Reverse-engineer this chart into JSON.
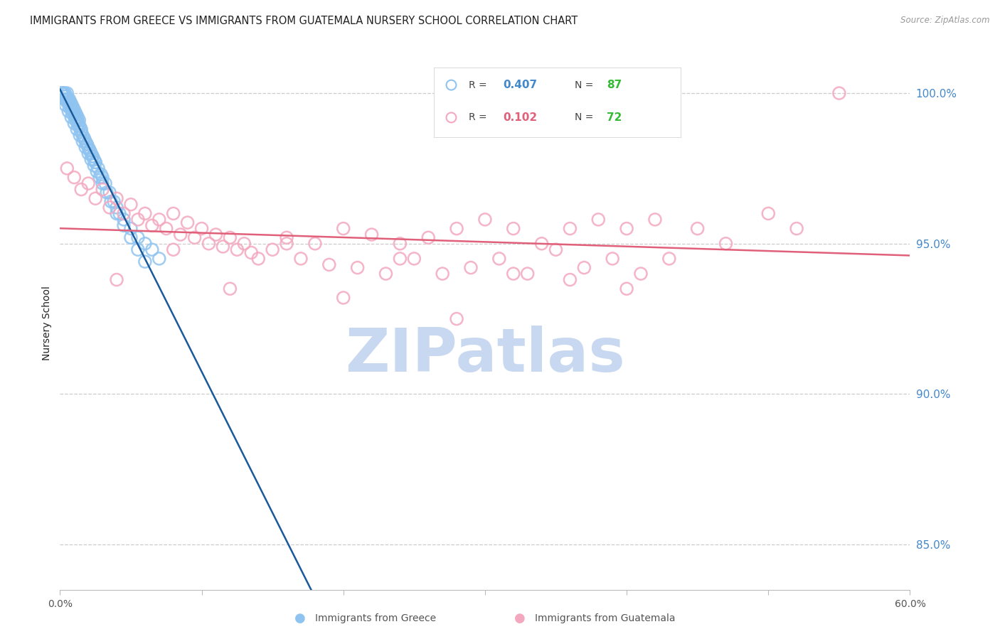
{
  "title": "IMMIGRANTS FROM GREECE VS IMMIGRANTS FROM GUATEMALA NURSERY SCHOOL CORRELATION CHART",
  "source": "Source: ZipAtlas.com",
  "ylabel": "Nursery School",
  "xlim": [
    0.0,
    60.0
  ],
  "ylim": [
    83.5,
    101.2
  ],
  "yticks": [
    85.0,
    90.0,
    95.0,
    100.0
  ],
  "legend_greece_R": "0.407",
  "legend_greece_N": "87",
  "legend_guatemala_R": "0.102",
  "legend_guatemala_N": "72",
  "greece_color": "#90C4F0",
  "guatemala_color": "#F4A8C0",
  "greece_line_color": "#1A5A9A",
  "guatemala_line_color": "#E0607A",
  "watermark": "ZIPatlas",
  "watermark_color": "#C8D8F0",
  "greece_scatter_x": [
    0.1,
    0.15,
    0.2,
    0.25,
    0.3,
    0.35,
    0.4,
    0.45,
    0.5,
    0.55,
    0.6,
    0.65,
    0.7,
    0.75,
    0.8,
    0.85,
    0.9,
    0.95,
    1.0,
    1.05,
    1.1,
    1.15,
    1.2,
    1.25,
    1.3,
    1.35,
    1.4,
    1.5,
    1.6,
    1.7,
    1.8,
    1.9,
    2.0,
    2.1,
    2.2,
    2.3,
    2.4,
    2.5,
    2.7,
    2.9,
    3.0,
    3.2,
    3.5,
    3.8,
    4.0,
    4.2,
    4.5,
    5.0,
    5.5,
    6.0,
    6.5,
    7.0,
    0.3,
    0.5,
    0.7,
    0.9,
    1.1,
    1.3,
    1.5,
    1.7,
    1.9,
    2.1,
    2.3,
    2.5,
    0.4,
    0.6,
    0.8,
    1.0,
    1.2,
    1.4,
    1.6,
    1.8,
    2.0,
    2.2,
    2.4,
    2.6,
    2.8,
    3.0,
    3.3,
    3.6,
    4.0,
    4.5,
    5.0,
    5.5,
    6.0,
    0.2,
    0.8
  ],
  "greece_scatter_y": [
    100.0,
    100.0,
    100.0,
    99.9,
    100.0,
    100.0,
    99.8,
    99.9,
    100.0,
    99.8,
    99.7,
    99.8,
    99.6,
    99.7,
    99.5,
    99.6,
    99.4,
    99.5,
    99.3,
    99.4,
    99.2,
    99.3,
    99.1,
    99.2,
    99.0,
    99.1,
    98.9,
    98.8,
    98.6,
    98.5,
    98.4,
    98.3,
    98.2,
    98.1,
    98.0,
    97.9,
    97.8,
    97.7,
    97.5,
    97.3,
    97.2,
    97.0,
    96.7,
    96.4,
    96.2,
    96.0,
    95.8,
    95.5,
    95.2,
    95.0,
    94.8,
    94.5,
    99.8,
    99.7,
    99.5,
    99.3,
    99.1,
    98.9,
    98.7,
    98.5,
    98.3,
    98.1,
    97.9,
    97.7,
    99.6,
    99.4,
    99.2,
    99.0,
    98.8,
    98.6,
    98.4,
    98.2,
    98.0,
    97.8,
    97.6,
    97.4,
    97.2,
    97.0,
    96.7,
    96.4,
    96.0,
    95.6,
    95.2,
    94.8,
    94.4,
    100.0,
    99.5
  ],
  "guatemala_scatter_x": [
    0.5,
    1.0,
    1.5,
    2.0,
    2.5,
    3.0,
    3.5,
    4.0,
    4.5,
    5.0,
    5.5,
    6.0,
    6.5,
    7.0,
    7.5,
    8.0,
    8.5,
    9.0,
    9.5,
    10.0,
    10.5,
    11.0,
    11.5,
    12.0,
    12.5,
    13.0,
    13.5,
    14.0,
    15.0,
    16.0,
    17.0,
    18.0,
    19.0,
    20.0,
    21.0,
    22.0,
    23.0,
    24.0,
    25.0,
    26.0,
    27.0,
    28.0,
    29.0,
    30.0,
    31.0,
    32.0,
    33.0,
    34.0,
    35.0,
    36.0,
    37.0,
    38.0,
    39.0,
    40.0,
    41.0,
    42.0,
    43.0,
    45.0,
    47.0,
    50.0,
    52.0,
    55.0,
    4.0,
    8.0,
    12.0,
    16.0,
    20.0,
    24.0,
    28.0,
    32.0,
    36.0,
    40.0
  ],
  "guatemala_scatter_y": [
    97.5,
    97.2,
    96.8,
    97.0,
    96.5,
    96.8,
    96.2,
    96.5,
    96.0,
    96.3,
    95.8,
    96.0,
    95.6,
    95.8,
    95.5,
    96.0,
    95.3,
    95.7,
    95.2,
    95.5,
    95.0,
    95.3,
    94.9,
    95.2,
    94.8,
    95.0,
    94.7,
    94.5,
    94.8,
    95.2,
    94.5,
    95.0,
    94.3,
    95.5,
    94.2,
    95.3,
    94.0,
    95.0,
    94.5,
    95.2,
    94.0,
    95.5,
    94.2,
    95.8,
    94.5,
    95.5,
    94.0,
    95.0,
    94.8,
    95.5,
    94.2,
    95.8,
    94.5,
    95.5,
    94.0,
    95.8,
    94.5,
    95.5,
    95.0,
    96.0,
    95.5,
    100.0,
    93.8,
    94.8,
    93.5,
    95.0,
    93.2,
    94.5,
    92.5,
    94.0,
    93.8,
    93.5
  ],
  "background_color": "#FFFFFF",
  "title_color": "#222222",
  "title_fontsize": 10.5,
  "ylabel_fontsize": 10,
  "tick_label_color_right": "#4488CC",
  "tick_label_color_bottom": "#555555",
  "grid_color": "#CCCCCC",
  "legend_R_color_greece": "#4488CC",
  "legend_R_color_guatemala": "#E0607A",
  "legend_N_color": "#33BB33"
}
